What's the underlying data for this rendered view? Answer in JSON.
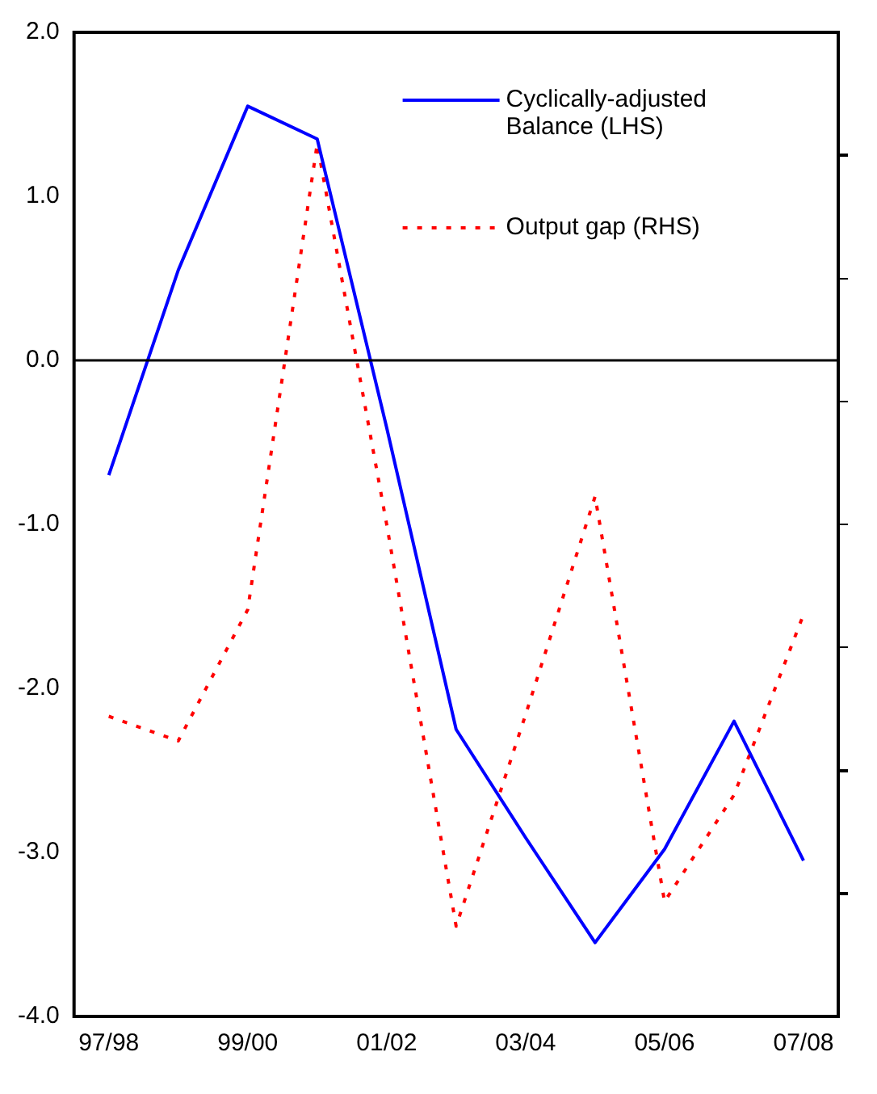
{
  "chart_data": {
    "type": "line",
    "categories": [
      "97/98",
      null,
      "99/00",
      null,
      "01/02",
      null,
      "03/04",
      null,
      "05/06",
      null,
      "07/08"
    ],
    "series": [
      {
        "name": "Cyclically-adjusted Balance (LHS)",
        "color": "#0000ff",
        "line_style": "solid",
        "values": [
          -0.7,
          0.55,
          1.55,
          1.35,
          -0.41,
          -2.25,
          -2.91,
          -3.55,
          -2.98,
          -2.2,
          -3.05
        ]
      },
      {
        "name": "Output gap (RHS)",
        "color": "#ff0000",
        "line_style": "dotted",
        "values": [
          -2.17,
          -2.32,
          -1.52,
          1.32,
          -1.0,
          -3.45,
          -2.16,
          -0.83,
          -3.3,
          -2.65,
          -1.55
        ]
      }
    ],
    "ylim": [
      -4,
      2
    ],
    "yticks": [
      {
        "value": 2,
        "label": "2.0"
      },
      {
        "value": 1,
        "label": "1.0"
      },
      {
        "value": 0,
        "label": "0.0"
      },
      {
        "value": -1,
        "label": "-1.0"
      },
      {
        "value": -2,
        "label": "-2.0"
      },
      {
        "value": -3,
        "label": "-3.0"
      },
      {
        "value": -4,
        "label": "-4.0"
      }
    ],
    "ref_lines": [
      {
        "axis": "y",
        "value": 0,
        "color": "#000000"
      }
    ],
    "grid": false,
    "legend": "top right",
    "marker": "none"
  }
}
